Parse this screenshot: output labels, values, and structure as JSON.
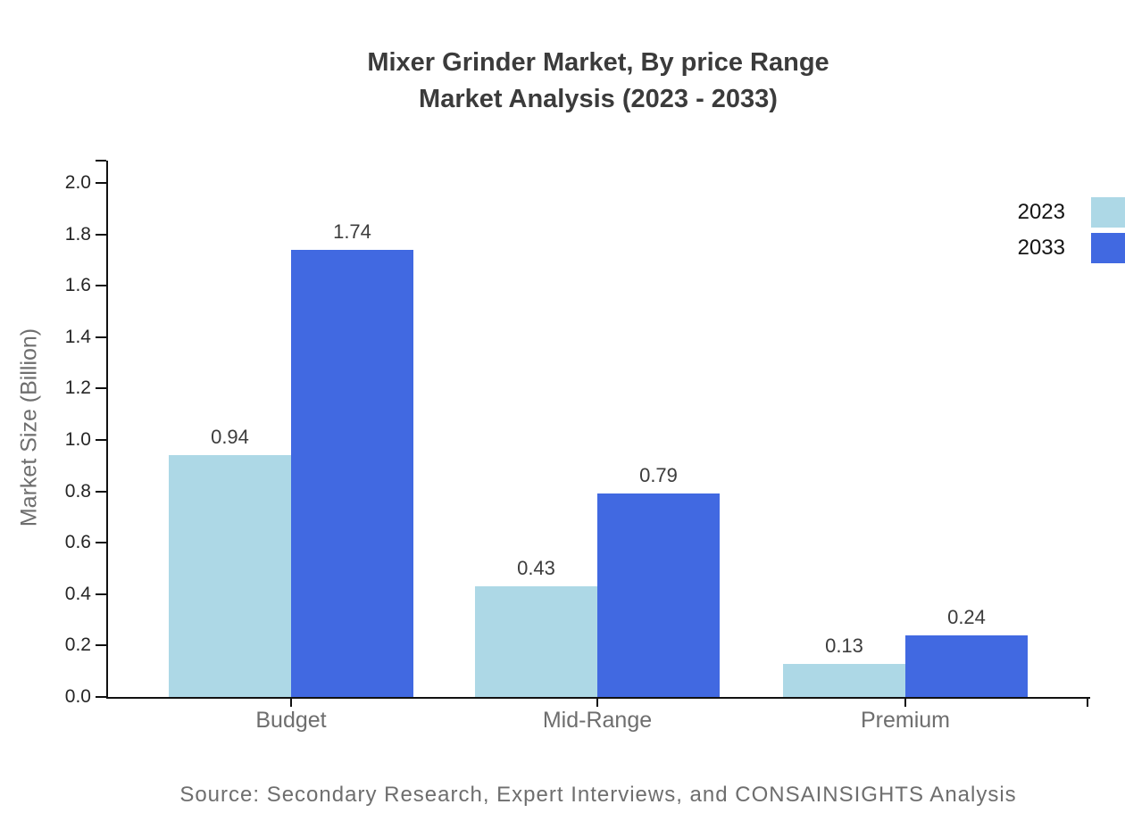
{
  "title": {
    "line1": "Mixer Grinder Market, By price Range",
    "line2": "Market Analysis (2023 - 2033)"
  },
  "source_note": "Source: Secondary Research, Expert Interviews, and CONSAINSIGHTS Analysis",
  "chart_data": {
    "type": "bar",
    "title": "Mixer Grinder Market, By price Range Market Analysis (2023 - 2033)",
    "categories": [
      "Budget",
      "Mid-Range",
      "Premium"
    ],
    "series": [
      {
        "name": "2023",
        "color": "#ADD8E6",
        "values": [
          0.94,
          0.43,
          0.13
        ]
      },
      {
        "name": "2033",
        "color": "#4169E1",
        "values": [
          1.74,
          0.79,
          0.24
        ]
      }
    ],
    "xlabel": "",
    "ylabel": "Market Size (Billion)",
    "ylim": [
      0.0,
      2.0
    ],
    "yticks": [
      0.0,
      0.2,
      0.4,
      0.6,
      0.8,
      1.0,
      1.2,
      1.4,
      1.6,
      1.8,
      2.0
    ],
    "grid": false,
    "legend_position": "top-right",
    "value_labels": true,
    "value_label_format": "2dp"
  }
}
